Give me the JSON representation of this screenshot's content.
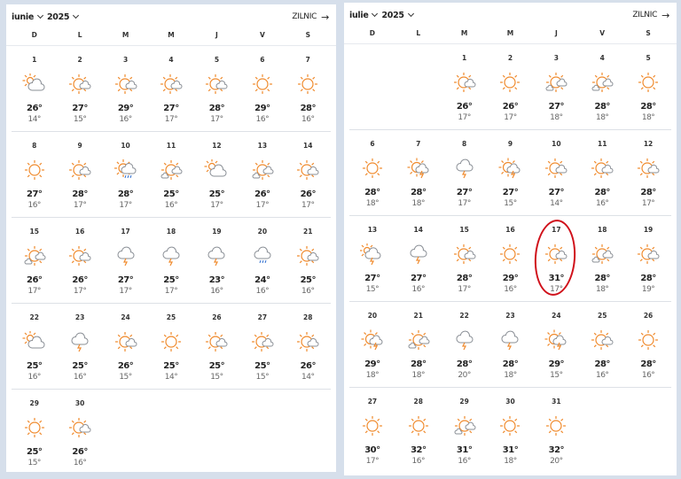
{
  "calendars": [
    {
      "month": "iunie",
      "year": "2025",
      "daily_link": "ZILNIC",
      "weekdays": [
        "D",
        "L",
        "M",
        "M",
        "J",
        "V",
        "S"
      ],
      "days": [
        {
          "d": "1",
          "hi": "26°",
          "lo": "14°",
          "icon": "partly-cloudy"
        },
        {
          "d": "2",
          "hi": "27°",
          "lo": "15°",
          "icon": "sun-cloud"
        },
        {
          "d": "3",
          "hi": "29°",
          "lo": "16°",
          "icon": "sun-cloud"
        },
        {
          "d": "4",
          "hi": "27°",
          "lo": "17°",
          "icon": "sun-cloud"
        },
        {
          "d": "5",
          "hi": "28°",
          "lo": "17°",
          "icon": "sun-cloud"
        },
        {
          "d": "6",
          "hi": "29°",
          "lo": "16°",
          "icon": "sun"
        },
        {
          "d": "7",
          "hi": "28°",
          "lo": "16°",
          "icon": "sun"
        },
        {
          "d": "8",
          "hi": "27°",
          "lo": "16°",
          "icon": "sun"
        },
        {
          "d": "9",
          "hi": "28°",
          "lo": "17°",
          "icon": "sun-cloud"
        },
        {
          "d": "10",
          "hi": "28°",
          "lo": "17°",
          "icon": "sun-rain"
        },
        {
          "d": "11",
          "hi": "25°",
          "lo": "16°",
          "icon": "sun-clouds"
        },
        {
          "d": "12",
          "hi": "25°",
          "lo": "17°",
          "icon": "partly-cloudy"
        },
        {
          "d": "13",
          "hi": "26°",
          "lo": "17°",
          "icon": "sun-clouds"
        },
        {
          "d": "14",
          "hi": "26°",
          "lo": "17°",
          "icon": "sun-cloud"
        },
        {
          "d": "15",
          "hi": "26°",
          "lo": "17°",
          "icon": "sun-clouds"
        },
        {
          "d": "16",
          "hi": "26°",
          "lo": "17°",
          "icon": "sun-cloud"
        },
        {
          "d": "17",
          "hi": "27°",
          "lo": "17°",
          "icon": "thunderstorm"
        },
        {
          "d": "18",
          "hi": "25°",
          "lo": "17°",
          "icon": "thunderstorm"
        },
        {
          "d": "19",
          "hi": "23°",
          "lo": "16°",
          "icon": "thunderstorm"
        },
        {
          "d": "20",
          "hi": "24°",
          "lo": "16°",
          "icon": "rain"
        },
        {
          "d": "21",
          "hi": "25°",
          "lo": "16°",
          "icon": "sun-cloud"
        },
        {
          "d": "22",
          "hi": "25°",
          "lo": "16°",
          "icon": "partly-cloudy"
        },
        {
          "d": "23",
          "hi": "25°",
          "lo": "16°",
          "icon": "thunderstorm"
        },
        {
          "d": "24",
          "hi": "26°",
          "lo": "15°",
          "icon": "sun-cloud"
        },
        {
          "d": "25",
          "hi": "25°",
          "lo": "14°",
          "icon": "sun"
        },
        {
          "d": "26",
          "hi": "25°",
          "lo": "15°",
          "icon": "sun-cloud"
        },
        {
          "d": "27",
          "hi": "25°",
          "lo": "15°",
          "icon": "sun-cloud"
        },
        {
          "d": "28",
          "hi": "26°",
          "lo": "14°",
          "icon": "sun-cloud"
        },
        {
          "d": "29",
          "hi": "25°",
          "lo": "15°",
          "icon": "sun"
        },
        {
          "d": "30",
          "hi": "26°",
          "lo": "16°",
          "icon": "sun-cloud"
        }
      ]
    },
    {
      "month": "iulie",
      "year": "2025",
      "daily_link": "ZILNIC",
      "weekdays": [
        "D",
        "L",
        "M",
        "M",
        "J",
        "V",
        "S"
      ],
      "circled_day": "17",
      "days": [
        {
          "d": "1",
          "hi": "26°",
          "lo": "17°",
          "icon": "sun-cloud"
        },
        {
          "d": "2",
          "hi": "26°",
          "lo": "17°",
          "icon": "sun"
        },
        {
          "d": "3",
          "hi": "27°",
          "lo": "18°",
          "icon": "sun-clouds"
        },
        {
          "d": "4",
          "hi": "28°",
          "lo": "18°",
          "icon": "sun-clouds"
        },
        {
          "d": "5",
          "hi": "28°",
          "lo": "18°",
          "icon": "sun"
        },
        {
          "d": "6",
          "hi": "28°",
          "lo": "18°",
          "icon": "sun"
        },
        {
          "d": "7",
          "hi": "28°",
          "lo": "18°",
          "icon": "sun-thunderstorm"
        },
        {
          "d": "8",
          "hi": "27°",
          "lo": "17°",
          "icon": "thunderstorm"
        },
        {
          "d": "9",
          "hi": "27°",
          "lo": "15°",
          "icon": "sun-thunderstorm"
        },
        {
          "d": "10",
          "hi": "27°",
          "lo": "14°",
          "icon": "sun-cloud"
        },
        {
          "d": "11",
          "hi": "28°",
          "lo": "16°",
          "icon": "sun-cloud"
        },
        {
          "d": "12",
          "hi": "28°",
          "lo": "17°",
          "icon": "sun-cloud"
        },
        {
          "d": "13",
          "hi": "27°",
          "lo": "15°",
          "icon": "partly-thunderstorm"
        },
        {
          "d": "14",
          "hi": "27°",
          "lo": "16°",
          "icon": "thunderstorm"
        },
        {
          "d": "15",
          "hi": "28°",
          "lo": "17°",
          "icon": "sun-cloud"
        },
        {
          "d": "16",
          "hi": "29°",
          "lo": "16°",
          "icon": "sun"
        },
        {
          "d": "17",
          "hi": "31°",
          "lo": "17°",
          "icon": "sun-cloud"
        },
        {
          "d": "18",
          "hi": "28°",
          "lo": "18°",
          "icon": "sun-clouds"
        },
        {
          "d": "19",
          "hi": "28°",
          "lo": "19°",
          "icon": "sun-cloud"
        },
        {
          "d": "20",
          "hi": "29°",
          "lo": "18°",
          "icon": "sun-thunderstorm"
        },
        {
          "d": "21",
          "hi": "28°",
          "lo": "18°",
          "icon": "sun-clouds"
        },
        {
          "d": "22",
          "hi": "28°",
          "lo": "20°",
          "icon": "thunderstorm"
        },
        {
          "d": "23",
          "hi": "28°",
          "lo": "18°",
          "icon": "thunderstorm"
        },
        {
          "d": "24",
          "hi": "29°",
          "lo": "15°",
          "icon": "sun-thunderstorm"
        },
        {
          "d": "25",
          "hi": "28°",
          "lo": "16°",
          "icon": "sun-cloud"
        },
        {
          "d": "26",
          "hi": "28°",
          "lo": "16°",
          "icon": "sun"
        },
        {
          "d": "27",
          "hi": "30°",
          "lo": "17°",
          "icon": "sun"
        },
        {
          "d": "28",
          "hi": "32°",
          "lo": "16°",
          "icon": "sun"
        },
        {
          "d": "29",
          "hi": "31°",
          "lo": "16°",
          "icon": "sun-clouds"
        },
        {
          "d": "30",
          "hi": "31°",
          "lo": "18°",
          "icon": "sun"
        },
        {
          "d": "31",
          "hi": "32°",
          "lo": "20°",
          "icon": "sun"
        }
      ]
    }
  ],
  "colors": {
    "sun": "#f08a2c",
    "cloud": "#8a8f96",
    "rain": "#2f6fd0",
    "bolt": "#f08a2c",
    "highlight": "#d0101a"
  }
}
